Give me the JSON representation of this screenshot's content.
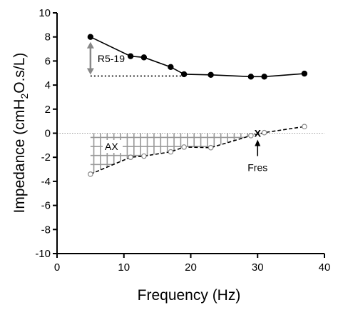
{
  "chart_data": {
    "type": "line",
    "xlabel": "Frequency (Hz)",
    "ylabel_parts": [
      "Impedance (cmH",
      "2",
      "O.s/L)"
    ],
    "xlim": [
      0,
      40
    ],
    "ylim": [
      -10,
      10
    ],
    "xticks": [
      0,
      10,
      20,
      30,
      40
    ],
    "yticks": [
      -10,
      -8,
      -6,
      -4,
      -2,
      0,
      2,
      4,
      6,
      8,
      10
    ],
    "grid": false,
    "series": [
      {
        "style": "solid-filled-circles",
        "color": "#000000",
        "x": [
          5,
          11,
          13,
          17,
          19,
          23,
          29,
          31,
          37
        ],
        "y": [
          8.0,
          6.4,
          6.3,
          5.5,
          4.9,
          4.85,
          4.7,
          4.7,
          4.95
        ]
      },
      {
        "style": "dashed-open-circles",
        "color": "#000000",
        "x": [
          5,
          11,
          13,
          17,
          19,
          23,
          29,
          31,
          37
        ],
        "y": [
          -3.4,
          -2.0,
          -1.9,
          -1.55,
          -1.15,
          -1.2,
          -0.2,
          0.05,
          0.55
        ]
      }
    ],
    "reference_line": {
      "y": 0,
      "style": "dotted",
      "color": "#999999"
    },
    "annotations": {
      "r5_19": {
        "label": "R5-19",
        "x": 5,
        "y_top": 8.0,
        "y_bottom": 4.75,
        "x_end": 19
      },
      "ax": {
        "label": "AX"
      },
      "fres": {
        "label": "Fres",
        "marker": "X",
        "x": 30,
        "y": 0
      }
    }
  }
}
